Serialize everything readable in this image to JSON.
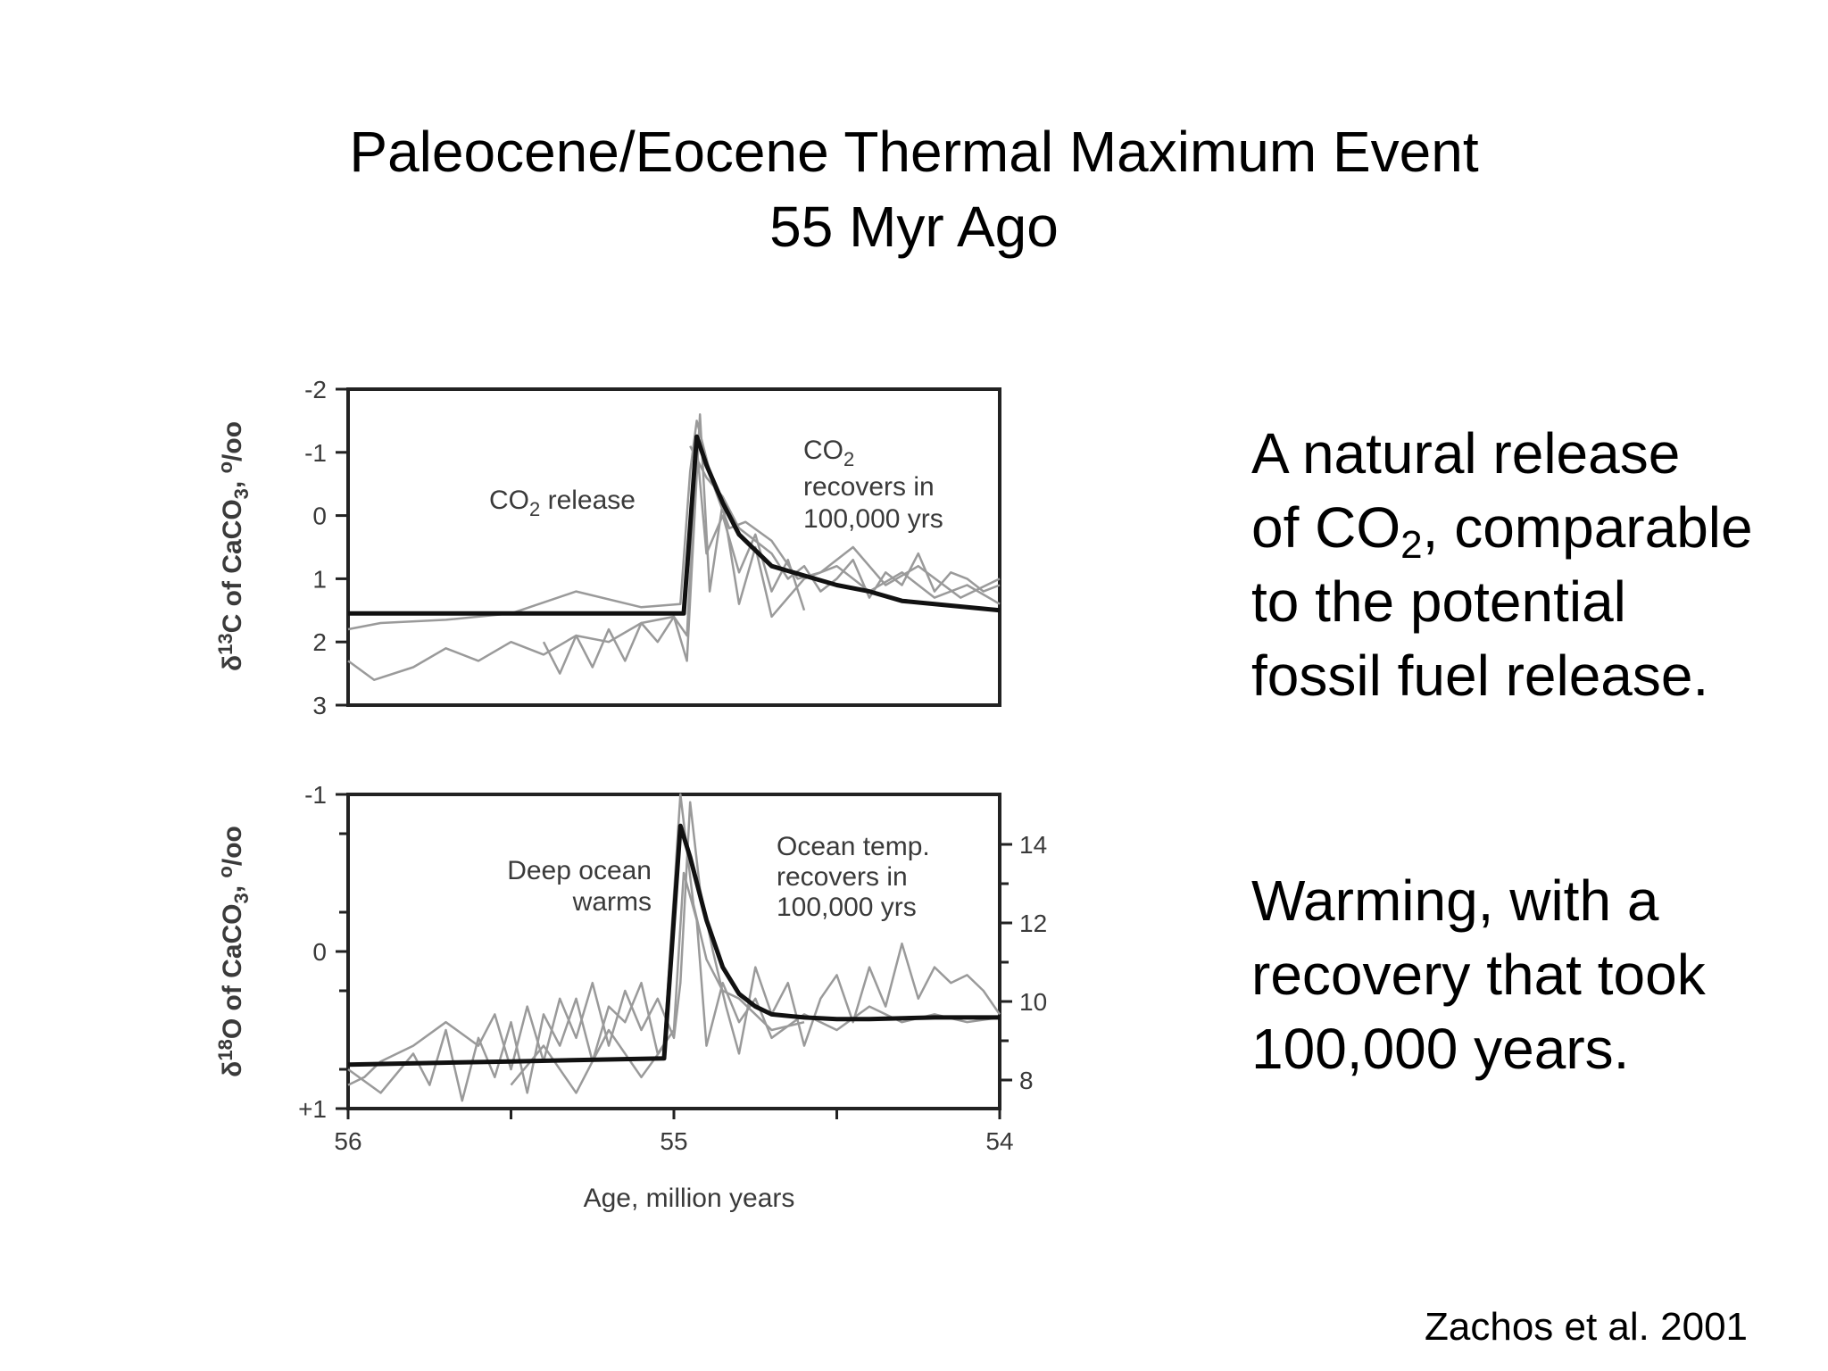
{
  "slide": {
    "title_line1": "Paleocene/Eocene Thermal Maximum Event",
    "title_line2": "55 Myr Ago",
    "text1": {
      "line1": "A natural release",
      "line2_pre": "of CO",
      "line2_sub": "2",
      "line2_post": ", comparable",
      "line3": "to the potential",
      "line4": "fossil fuel release."
    },
    "text2": {
      "line1": "Warming, with a",
      "line2": "recovery that took",
      "line3": "100,000 years."
    },
    "citation": "Zachos et al. 2001"
  },
  "chart_data": [
    {
      "type": "line",
      "ylabel": {
        "pre": "δ",
        "sup1": "13",
        "mid": "C of CaCO",
        "sub": "3",
        "post": ", ",
        "sup2": "o",
        "end": "/oo"
      },
      "xlim": [
        56,
        54
      ],
      "ylim": [
        -2,
        3
      ],
      "y_inverted": true,
      "y_ticks": [
        "-2",
        "-1",
        "0",
        "1",
        "2",
        "3"
      ],
      "annotations": {
        "release": {
          "pre": "CO",
          "sub": "2",
          "post": " release"
        },
        "recover1": {
          "pre": "CO",
          "sub": "2"
        },
        "recover2": "recovers in",
        "recover3": "100,000 yrs"
      },
      "series": [
        {
          "style": "bold-black",
          "x": [
            56,
            55.3,
            54.97,
            54.93,
            54.9,
            54.85,
            54.8,
            54.7,
            54.6,
            54.5,
            54.4,
            54.3,
            54.2,
            54.1,
            54
          ],
          "y": [
            1.55,
            1.55,
            1.55,
            -1.25,
            -0.8,
            -0.2,
            0.3,
            0.8,
            0.95,
            1.1,
            1.2,
            1.35,
            1.4,
            1.45,
            1.5
          ]
        },
        {
          "style": "gray",
          "x": [
            56,
            55.9,
            55.7,
            55.5,
            55.3,
            55.1,
            54.98,
            54.95,
            54.93,
            54.88,
            54.83,
            54.78,
            54.7,
            54.62,
            54.55,
            54.45,
            54.35,
            54.25,
            54.12,
            54
          ],
          "y": [
            1.8,
            1.7,
            1.65,
            1.55,
            1.2,
            1.45,
            1.4,
            -0.7,
            -1.5,
            -0.5,
            0.2,
            0.1,
            0.4,
            1.0,
            0.9,
            0.5,
            1.1,
            0.8,
            1.3,
            1.0
          ]
        },
        {
          "style": "gray",
          "x": [
            56,
            55.92,
            55.8,
            55.7,
            55.6,
            55.5,
            55.4,
            55.3,
            55.2,
            55.1,
            55.0,
            54.96,
            54.92,
            54.89,
            54.85,
            54.8,
            54.75,
            54.7,
            54.6,
            54.5,
            54.4,
            54.3,
            54.2,
            54.1,
            54
          ],
          "y": [
            2.3,
            2.6,
            2.4,
            2.1,
            2.3,
            2.0,
            2.2,
            1.9,
            2.0,
            1.7,
            1.6,
            2.3,
            -1.6,
            1.2,
            -0.2,
            1.4,
            0.5,
            1.6,
            1.0,
            0.8,
            1.2,
            0.9,
            1.3,
            1.1,
            1.4
          ]
        },
        {
          "style": "gray",
          "x": [
            55.4,
            55.35,
            55.3,
            55.25,
            55.2,
            55.15,
            55.1,
            55.05,
            55.0,
            54.96,
            54.93,
            54.9,
            54.85,
            54.8,
            54.75,
            54.7,
            54.65,
            54.6
          ],
          "y": [
            2.0,
            2.5,
            1.9,
            2.4,
            1.8,
            2.3,
            1.7,
            2.0,
            1.6,
            1.9,
            -1.1,
            0.6,
            0.0,
            0.9,
            0.3,
            1.2,
            0.7,
            1.5
          ]
        },
        {
          "style": "gray",
          "x": [
            54.95,
            54.9,
            54.85,
            54.8,
            54.75,
            54.7,
            54.65,
            54.6,
            54.55,
            54.5,
            54.45,
            54.4,
            54.35,
            54.3,
            54.25,
            54.2,
            54.15,
            54.1,
            54.05,
            54
          ],
          "y": [
            -1.1,
            -0.6,
            -0.3,
            0.2,
            0.4,
            0.6,
            1.0,
            0.8,
            1.2,
            1.0,
            0.7,
            1.3,
            0.9,
            1.1,
            0.6,
            1.2,
            0.9,
            1.0,
            1.2,
            1.1
          ]
        }
      ]
    },
    {
      "type": "line",
      "ylabel": {
        "pre": "δ",
        "sup1": "18",
        "mid": "O of CaCO",
        "sub": "3",
        "post": ", ",
        "sup2": "o",
        "end": "/oo"
      },
      "xlim": [
        56,
        54
      ],
      "ylim": [
        -1,
        1
      ],
      "y_inverted": true,
      "y_ticks": [
        "-1",
        "0",
        "+1"
      ],
      "y2_ticks": [
        "14",
        "12",
        "10",
        "8"
      ],
      "x_ticks": [
        "56",
        "55",
        "54"
      ],
      "xlabel": "Age, million years",
      "annotations": {
        "deep1": "Deep ocean",
        "deep2": "warms",
        "temp1": "Ocean temp.",
        "temp2": "recovers in",
        "temp3": "100,000 yrs"
      },
      "series": [
        {
          "style": "bold-black",
          "x": [
            56,
            55.5,
            55.03,
            54.98,
            54.95,
            54.9,
            54.85,
            54.8,
            54.75,
            54.7,
            54.6,
            54.5,
            54.4,
            54.2,
            54
          ],
          "y": [
            0.72,
            0.7,
            0.68,
            -0.8,
            -0.6,
            -0.2,
            0.1,
            0.27,
            0.35,
            0.4,
            0.42,
            0.43,
            0.43,
            0.42,
            0.42
          ]
        },
        {
          "style": "gray",
          "x": [
            56,
            55.95,
            55.9,
            55.8,
            55.7,
            55.6,
            55.55,
            55.5,
            55.45,
            55.4,
            55.35,
            55.3,
            55.25,
            55.2,
            55.15,
            55.1,
            55.05,
            55.0,
            54.98,
            54.95,
            54.92,
            54.88,
            54.84,
            54.8,
            54.75,
            54.7,
            54.65,
            54.6,
            54.55,
            54.5,
            54.45,
            54.4,
            54.35,
            54.3,
            54.25,
            54.2,
            54.15,
            54.1,
            54.05,
            54
          ],
          "y": [
            0.85,
            0.8,
            0.7,
            0.6,
            0.45,
            0.6,
            0.4,
            0.75,
            0.35,
            0.7,
            0.3,
            0.55,
            0.2,
            0.6,
            0.25,
            0.5,
            0.3,
            0.55,
            0.2,
            -0.95,
            -0.4,
            0.0,
            0.35,
            0.65,
            0.1,
            0.4,
            0.2,
            0.6,
            0.3,
            0.15,
            0.45,
            0.1,
            0.35,
            -0.05,
            0.3,
            0.1,
            0.2,
            0.15,
            0.25,
            0.4
          ]
        },
        {
          "style": "gray",
          "x": [
            56,
            55.9,
            55.8,
            55.75,
            55.7,
            55.65,
            55.6,
            55.55,
            55.5,
            55.45,
            55.4,
            55.35,
            55.3,
            55.25,
            55.2,
            55.15,
            55.1,
            55.05,
            55.0,
            54.97,
            54.93,
            54.9,
            54.85,
            54.8,
            54.75,
            54.7,
            54.6,
            54.5,
            54.4,
            54.3,
            54.2,
            54.1,
            54
          ],
          "y": [
            0.75,
            0.9,
            0.65,
            0.85,
            0.5,
            0.95,
            0.55,
            0.8,
            0.45,
            0.9,
            0.4,
            0.6,
            0.3,
            0.7,
            0.35,
            0.45,
            0.2,
            0.65,
            0.5,
            -0.5,
            -0.2,
            0.6,
            0.2,
            0.45,
            0.3,
            0.55,
            0.4,
            0.5,
            0.35,
            0.45,
            0.4,
            0.45,
            0.42
          ]
        },
        {
          "style": "gray",
          "x": [
            55.5,
            55.4,
            55.3,
            55.2,
            55.1,
            55.03,
            54.98,
            54.94,
            54.9,
            54.85,
            54.8,
            54.7,
            54.6
          ],
          "y": [
            0.85,
            0.6,
            0.9,
            0.5,
            0.8,
            0.6,
            -1.0,
            -0.3,
            0.05,
            0.25,
            0.3,
            0.5,
            0.45
          ]
        }
      ]
    }
  ]
}
